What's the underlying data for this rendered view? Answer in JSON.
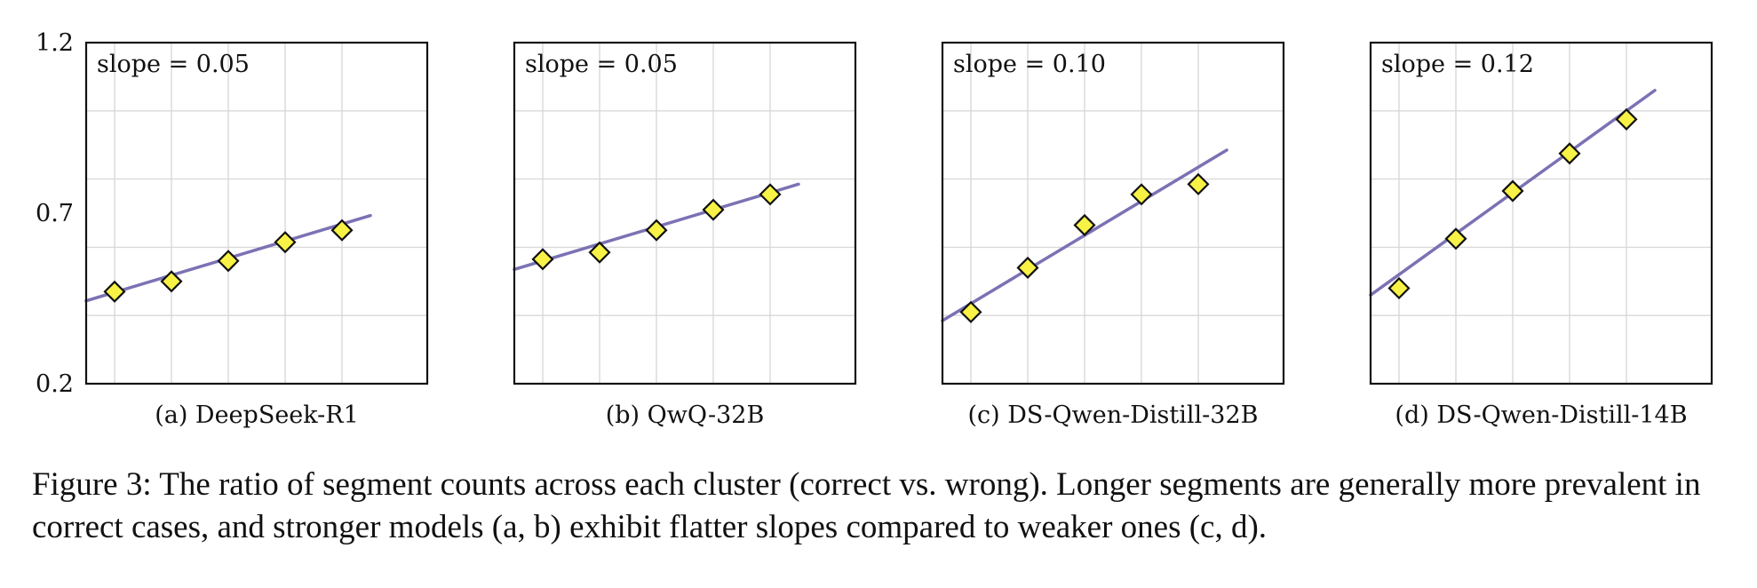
{
  "caption": "Figure 3: The ratio of segment counts across each cluster (correct vs. wrong). Longer segments are generally more prevalent in correct cases, and stronger models (a, b) exhibit flatter slopes compared to weaker ones (c, d).",
  "colors": {
    "line": "#7b72b4",
    "marker_fill": "#f7f245",
    "marker_edge": "#111111",
    "grid": "#d9d9d9"
  },
  "chart_data": [
    {
      "type": "scatter",
      "subtitle": "(a) DeepSeek-R1",
      "annotation": "slope = 0.05",
      "x": [
        1,
        2,
        3,
        4,
        5
      ],
      "values": [
        0.47,
        0.5,
        0.56,
        0.615,
        0.65
      ],
      "fit_line": {
        "x": [
          0.5,
          5.5
        ],
        "y": [
          0.443,
          0.693
        ]
      },
      "ylim": [
        0.2,
        1.2
      ],
      "yticks": [
        "0.2",
        "0.7",
        "1.2"
      ],
      "grid": true
    },
    {
      "type": "scatter",
      "subtitle": "(b) QwQ-32B",
      "annotation": "slope = 0.05",
      "x": [
        1,
        2,
        3,
        4,
        5
      ],
      "values": [
        0.565,
        0.585,
        0.65,
        0.71,
        0.755
      ],
      "fit_line": {
        "x": [
          0.5,
          5.5
        ],
        "y": [
          0.535,
          0.785
        ]
      },
      "ylim": [
        0.2,
        1.2
      ],
      "grid": true
    },
    {
      "type": "scatter",
      "subtitle": "(c) DS-Qwen-Distill-32B",
      "annotation": "slope = 0.10",
      "x": [
        1,
        2,
        3,
        4,
        5
      ],
      "values": [
        0.41,
        0.54,
        0.665,
        0.755,
        0.785
      ],
      "fit_line": {
        "x": [
          0.5,
          5.5
        ],
        "y": [
          0.385,
          0.885
        ]
      },
      "ylim": [
        0.2,
        1.2
      ],
      "grid": true
    },
    {
      "type": "scatter",
      "subtitle": "(d) DS-Qwen-Distill-14B",
      "annotation": "slope = 0.12",
      "x": [
        1,
        2,
        3,
        4,
        5
      ],
      "values": [
        0.48,
        0.625,
        0.765,
        0.875,
        0.975
      ],
      "fit_line": {
        "x": [
          0.5,
          5.5
        ],
        "y": [
          0.46,
          1.06
        ]
      },
      "ylim": [
        0.2,
        1.2
      ],
      "grid": true
    }
  ]
}
